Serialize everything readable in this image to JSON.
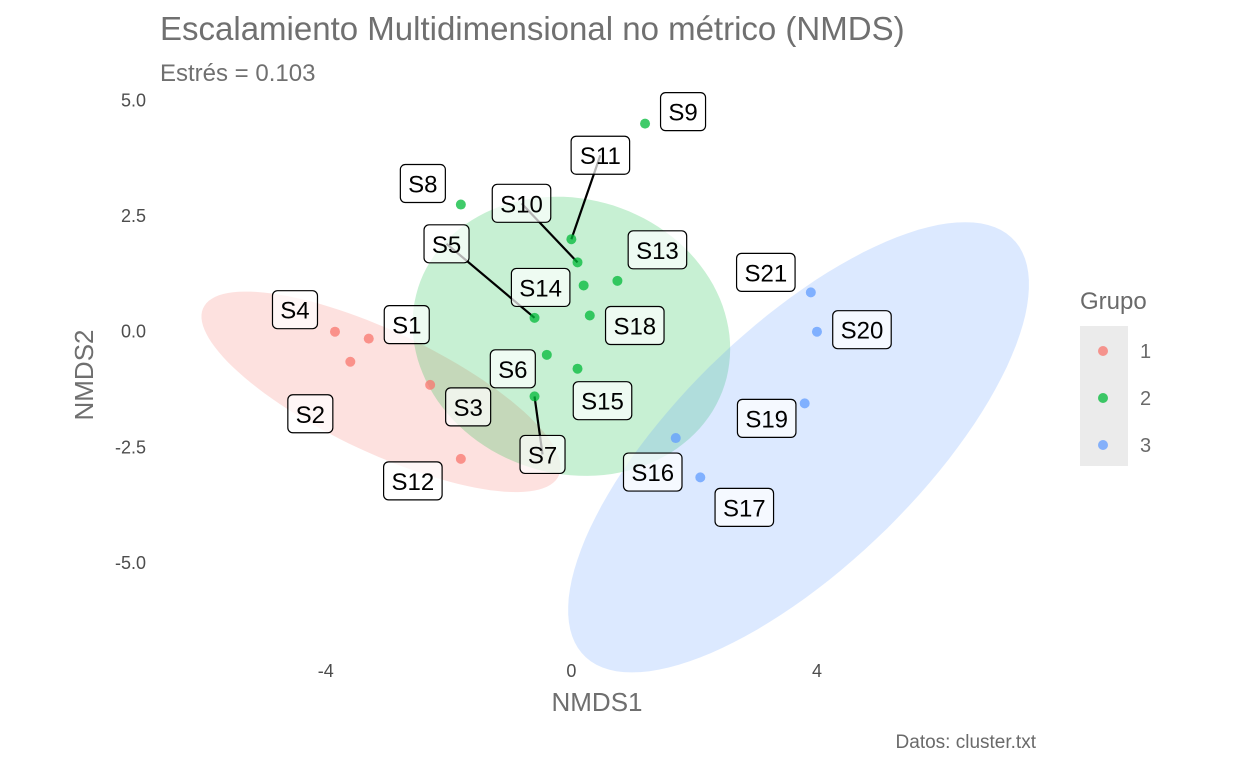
{
  "chart_data": {
    "type": "scatter",
    "title": "Escalamiento Multidimensional no métrico (NMDS)",
    "subtitle": "Estrés = 0.103",
    "xlabel": "NMDS1",
    "ylabel": "NMDS2",
    "caption": "Datos: cluster.txt",
    "xlim": [
      -6.7,
      7.6
    ],
    "ylim": [
      -7.1,
      5.4
    ],
    "xticks": [
      -4,
      0,
      4
    ],
    "xtick_labels": [
      "-4",
      "0",
      "4"
    ],
    "yticks": [
      -5,
      -2.5,
      0,
      2.5,
      5
    ],
    "ytick_labels": [
      "-5.0",
      "-2.5",
      "0.0",
      "2.5",
      "5.0"
    ],
    "grid": false,
    "legend": {
      "title": "Grupo",
      "position": "right",
      "entries": [
        {
          "label": "1",
          "color": "#f8766d"
        },
        {
          "label": "2",
          "color": "#00ba38"
        },
        {
          "label": "3",
          "color": "#619cff"
        }
      ]
    },
    "ellipses": [
      {
        "group": "1",
        "cx": -3.1,
        "cy": -1.3,
        "rx": 3.43,
        "ry": 1.22,
        "angle_deg": -34,
        "color": "#f8766d"
      },
      {
        "group": "2",
        "cx": 0.0,
        "cy": -0.1,
        "rx": 2.55,
        "ry": 3.05,
        "angle_deg": 15,
        "color": "#00ba38"
      },
      {
        "group": "3",
        "cx": 3.7,
        "cy": -2.5,
        "rx": 5.74,
        "ry": 2.2,
        "angle_deg": 55,
        "color": "#619cff"
      }
    ],
    "series": [
      {
        "name": "1",
        "color": "#f8766d",
        "points": [
          {
            "label": "S1",
            "x": -3.3,
            "y": -0.15
          },
          {
            "label": "S2",
            "x": -3.6,
            "y": -0.65
          },
          {
            "label": "S3",
            "x": -2.3,
            "y": -1.15
          },
          {
            "label": "S4",
            "x": -3.85,
            "y": 0.0
          },
          {
            "label": "S12",
            "x": -1.8,
            "y": -2.75
          }
        ]
      },
      {
        "name": "2",
        "color": "#00ba38",
        "points": [
          {
            "label": "S5",
            "x": -0.6,
            "y": 0.3
          },
          {
            "label": "S6",
            "x": -0.4,
            "y": -0.5
          },
          {
            "label": "S7",
            "x": -0.6,
            "y": -1.4
          },
          {
            "label": "S8",
            "x": -1.8,
            "y": 2.75
          },
          {
            "label": "S9",
            "x": 1.2,
            "y": 4.5
          },
          {
            "label": "S10",
            "x": 0.1,
            "y": 1.5
          },
          {
            "label": "S11",
            "x": 0.0,
            "y": 2.0
          },
          {
            "label": "S13",
            "x": 0.75,
            "y": 1.1
          },
          {
            "label": "S14",
            "x": 0.2,
            "y": 1.0
          },
          {
            "label": "S15",
            "x": 0.1,
            "y": -0.8
          },
          {
            "label": "S18",
            "x": 0.3,
            "y": 0.35
          }
        ]
      },
      {
        "name": "3",
        "color": "#619cff",
        "points": [
          {
            "label": "S16",
            "x": 1.7,
            "y": -2.3
          },
          {
            "label": "S17",
            "x": 2.1,
            "y": -3.15
          },
          {
            "label": "S19",
            "x": 3.8,
            "y": -1.55
          },
          {
            "label": "S20",
            "x": 4.0,
            "y": 0.0
          },
          {
            "label": "S21",
            "x": 3.9,
            "y": 0.85
          }
        ]
      }
    ]
  }
}
